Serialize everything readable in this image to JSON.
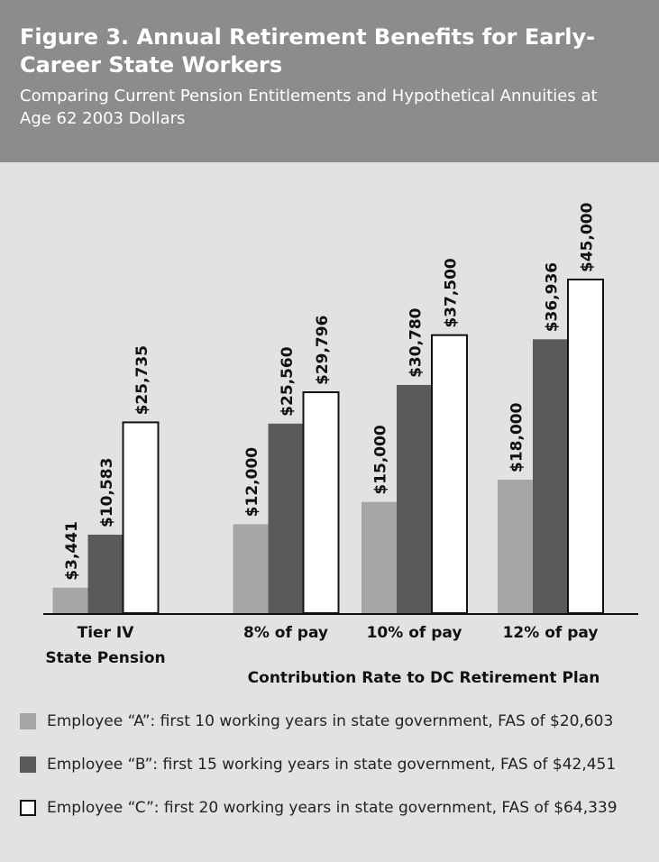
{
  "chart_data": {
    "type": "bar",
    "title": "Figure 3. Annual Retirement Benefits for Early-Career State Workers",
    "subtitle": "Comparing Current Pension Entitlements and Hypothetical Annuities at Age 62  2003 Dollars",
    "xlabel": "Contribution Rate to DC Retirement Plan",
    "categories": [
      "Tier IV\nState Pension",
      "8% of pay",
      "10% of pay",
      "12% of pay"
    ],
    "series": [
      {
        "name": "Employee “A”: first 10 working years in state government, FAS of $20,603",
        "color": "#a6a6a6",
        "values": [
          3441,
          12000,
          15000,
          18000
        ],
        "value_labels": [
          "$3,441",
          "$12,000",
          "$15,000",
          "$18,000"
        ]
      },
      {
        "name": "Employee “B”: first 15 working years in state government, FAS of $42,451",
        "color": "#5a5a5a",
        "values": [
          10583,
          25560,
          30780,
          36936
        ],
        "value_labels": [
          "$10,583",
          "$25,560",
          "$30,780",
          "$36,936"
        ]
      },
      {
        "name": "Employee “C”: first 20 working years in state government, FAS of $64,339",
        "color": "#ffffff",
        "values": [
          25735,
          29796,
          37500,
          45000
        ],
        "value_labels": [
          "$25,735",
          "$29,796",
          "$37,500",
          "$45,000"
        ]
      }
    ]
  }
}
